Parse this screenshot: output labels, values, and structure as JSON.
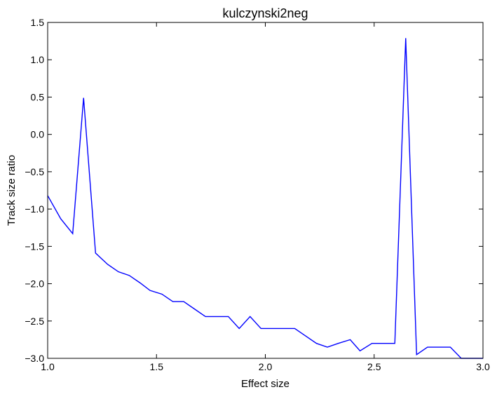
{
  "chart_data": {
    "type": "line",
    "title": "kulczynski2neg",
    "xlabel": "Effect size",
    "ylabel": "Track size ratio",
    "xlim": [
      1.0,
      3.0
    ],
    "ylim": [
      -3.0,
      1.5
    ],
    "xticks": [
      1.0,
      1.5,
      2.0,
      2.5,
      3.0
    ],
    "xtick_labels": [
      "1.0",
      "1.5",
      "2.0",
      "2.5",
      "3.0"
    ],
    "yticks": [
      -3.0,
      -2.5,
      -2.0,
      -1.5,
      -1.0,
      -0.5,
      0.0,
      0.5,
      1.0,
      1.5
    ],
    "ytick_labels": [
      "−3.0",
      "−2.5",
      "−2.0",
      "−1.5",
      "−1.0",
      "−0.5",
      "0.0",
      "0.5",
      "1.0",
      "1.5"
    ],
    "grid": false,
    "legend": false,
    "series": [
      {
        "color": "#0000ff",
        "x": [
          1.0,
          1.06,
          1.115,
          1.165,
          1.22,
          1.275,
          1.325,
          1.375,
          1.425,
          1.47,
          1.525,
          1.575,
          1.625,
          1.675,
          1.725,
          1.775,
          1.83,
          1.88,
          1.93,
          1.98,
          2.03,
          2.085,
          2.135,
          2.185,
          2.235,
          2.285,
          2.335,
          2.39,
          2.435,
          2.49,
          2.54,
          2.595,
          2.645,
          2.695,
          2.745,
          2.795,
          2.85,
          2.9,
          2.95,
          3.0
        ],
        "y": [
          -0.82,
          -1.13,
          -1.33,
          0.49,
          -1.59,
          -1.74,
          -1.84,
          -1.89,
          -1.99,
          -2.09,
          -2.14,
          -2.24,
          -2.24,
          -2.34,
          -2.44,
          -2.44,
          -2.44,
          -2.6,
          -2.44,
          -2.6,
          -2.6,
          -2.6,
          -2.6,
          -2.7,
          -2.8,
          -2.85,
          -2.8,
          -2.75,
          -2.9,
          -2.8,
          -2.8,
          -2.8,
          1.29,
          -2.95,
          -2.85,
          -2.85,
          -2.85,
          -3.0,
          -3.0,
          -3.0
        ]
      }
    ]
  }
}
